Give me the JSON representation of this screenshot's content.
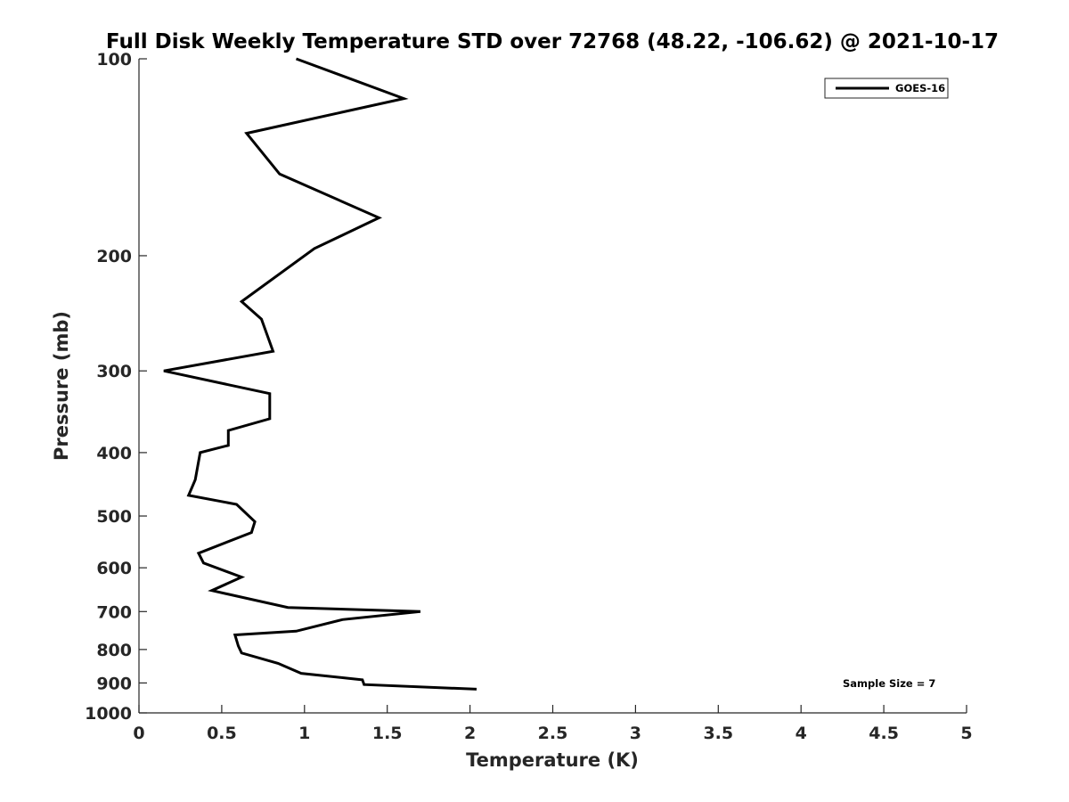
{
  "chart_data": {
    "type": "line",
    "title": "Full Disk Weekly Temperature STD over 72768 (48.22, -106.62) @ 2021-10-17",
    "xlabel": "Temperature (K)",
    "ylabel": "Pressure (mb)",
    "xlim": [
      0,
      5
    ],
    "ylim": [
      100,
      1000
    ],
    "y_scale": "log",
    "y_reversed": true,
    "x_ticks": [
      "0",
      "0.5",
      "1",
      "1.5",
      "2",
      "2.5",
      "3",
      "3.5",
      "4",
      "4.5",
      "5"
    ],
    "y_ticks": [
      "100",
      "200",
      "300",
      "400",
      "500",
      "600",
      "700",
      "800",
      "900",
      "1000"
    ],
    "grid": false,
    "legend_position": "top-right",
    "annotation": "Sample Size = 7",
    "series": [
      {
        "name": "GOES-16",
        "color": "#000000",
        "x": [
          0.95,
          1.6,
          0.65,
          0.85,
          1.45,
          1.06,
          0.62,
          0.74,
          0.81,
          0.15,
          0.79,
          0.79,
          0.54,
          0.54,
          0.37,
          0.34,
          0.3,
          0.59,
          0.7,
          0.68,
          0.36,
          0.39,
          0.62,
          0.44,
          0.9,
          1.7,
          1.23,
          0.95,
          0.58,
          0.6,
          0.62,
          0.84,
          0.98,
          1.35,
          1.36,
          2.04
        ],
        "y": [
          100,
          115,
          130,
          150,
          175,
          195,
          235,
          250,
          280,
          300,
          325,
          355,
          370,
          390,
          400,
          440,
          465,
          480,
          510,
          530,
          570,
          590,
          620,
          650,
          690,
          700,
          720,
          750,
          760,
          790,
          810,
          840,
          870,
          890,
          905,
          920
        ]
      }
    ]
  }
}
